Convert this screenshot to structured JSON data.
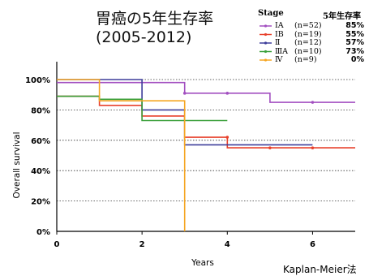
{
  "chart_data": {
    "type": "line",
    "title": "胃癌の5年生存率",
    "subtitle": "(2005-2012)",
    "xlabel": "Years",
    "ylabel": "Overall survival",
    "xlim": [
      0,
      7
    ],
    "ylim": [
      0,
      100
    ],
    "xticks": [
      "0",
      "2",
      "4",
      "6"
    ],
    "xtick_values": [
      0,
      2,
      4,
      6
    ],
    "yticks": [
      "0%",
      "20%",
      "40%",
      "60%",
      "80%",
      "100%"
    ],
    "ytick_values": [
      0,
      20,
      40,
      60,
      80,
      100
    ],
    "grid": "horizontal-dotted",
    "legend_position": "top-right",
    "legend_header": {
      "stage": "Stage",
      "rate": "5年生存率"
    },
    "method": "Kaplan-Meier法",
    "series": [
      {
        "name": "ⅠA",
        "n": "(n=52)",
        "rate": "85%",
        "color": "#a24fc0",
        "steps": [
          [
            0,
            98
          ],
          [
            3,
            98
          ],
          [
            3,
            91
          ],
          [
            5,
            91
          ],
          [
            5,
            85
          ],
          [
            7,
            85
          ]
        ],
        "censors": [
          [
            3,
            91
          ],
          [
            4,
            91
          ],
          [
            6,
            85
          ]
        ]
      },
      {
        "name": "ⅠB",
        "n": "(n=19)",
        "rate": "55%",
        "color": "#e8412c",
        "steps": [
          [
            0,
            89
          ],
          [
            1,
            89
          ],
          [
            1,
            83
          ],
          [
            2,
            83
          ],
          [
            2,
            76
          ],
          [
            3,
            76
          ],
          [
            3,
            62
          ],
          [
            4,
            62
          ],
          [
            4,
            55
          ],
          [
            7,
            55
          ]
        ],
        "censors": [
          [
            4,
            62
          ],
          [
            5,
            55
          ],
          [
            6,
            55
          ]
        ]
      },
      {
        "name": "Ⅱ",
        "n": "(n=12)",
        "rate": "57%",
        "color": "#3d3d9a",
        "steps": [
          [
            0,
            100
          ],
          [
            2,
            100
          ],
          [
            2,
            80
          ],
          [
            3,
            80
          ],
          [
            3,
            57
          ],
          [
            6,
            57
          ]
        ],
        "censors": []
      },
      {
        "name": "ⅢA",
        "n": "(n=10)",
        "rate": "73%",
        "color": "#3aa03a",
        "steps": [
          [
            0,
            89
          ],
          [
            1,
            89
          ],
          [
            1,
            87
          ],
          [
            2,
            87
          ],
          [
            2,
            73
          ],
          [
            4,
            73
          ]
        ],
        "censors": []
      },
      {
        "name": "Ⅳ",
        "n": "(n=9)",
        "rate": "0%",
        "color": "#f5a623",
        "steps": [
          [
            0,
            100
          ],
          [
            1,
            100
          ],
          [
            1,
            86
          ],
          [
            3,
            86
          ],
          [
            3,
            0
          ]
        ],
        "censors": []
      }
    ]
  }
}
